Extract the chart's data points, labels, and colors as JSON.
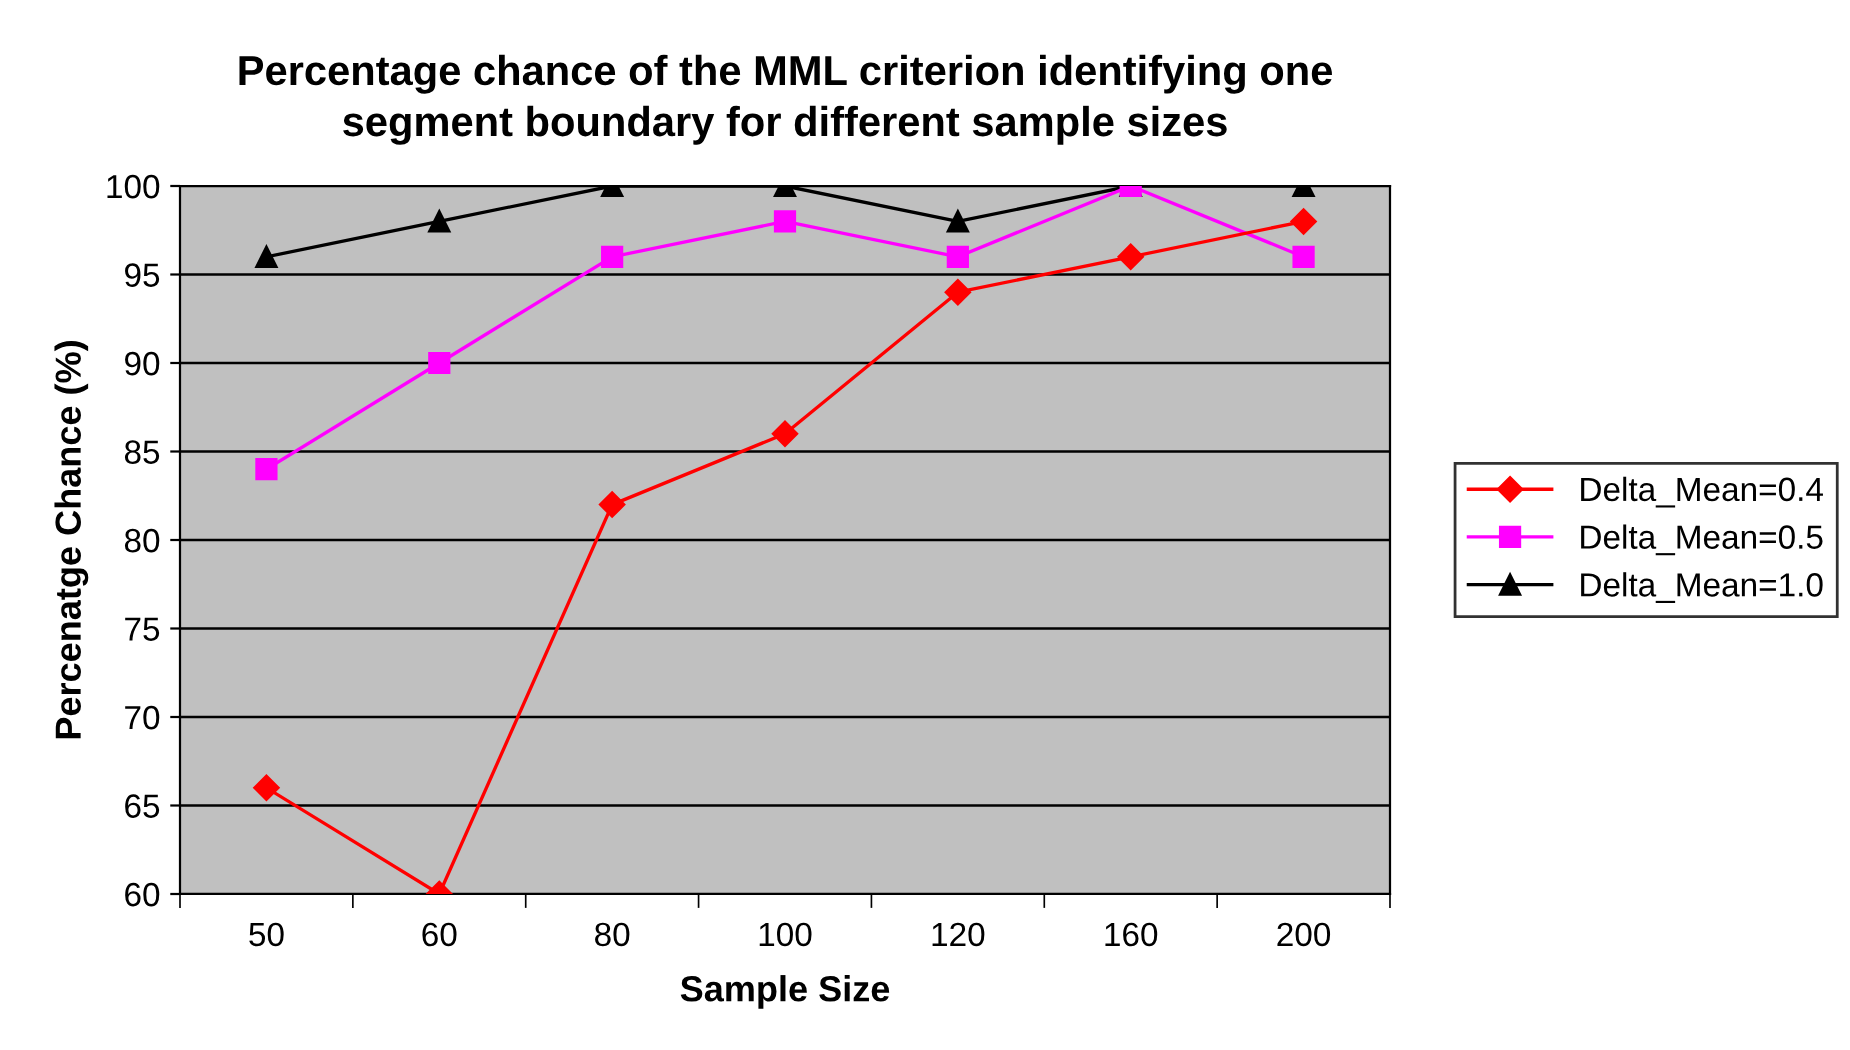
{
  "chart_data": {
    "type": "line",
    "title": "Percentage chance of the MML criterion identifying one\nsegment boundary for different sample sizes",
    "xlabel": "Sample Size",
    "ylabel": "Percenatge Chance (%)",
    "categories": [
      "50",
      "60",
      "80",
      "100",
      "120",
      "160",
      "200"
    ],
    "series": [
      {
        "name": "Delta_Mean=0.4",
        "color": "#ff0000",
        "marker": "diamond",
        "values": [
          66,
          60,
          82,
          86,
          94,
          96,
          98
        ]
      },
      {
        "name": "Delta_Mean=0.5",
        "color": "#ff00ff",
        "marker": "square",
        "values": [
          84,
          90,
          96,
          98,
          96,
          100,
          96
        ]
      },
      {
        "name": "Delta_Mean=1.0",
        "color": "#000000",
        "marker": "triangle",
        "values": [
          96,
          98,
          100,
          100,
          98,
          100,
          100
        ]
      }
    ],
    "ylim": [
      60,
      100
    ],
    "yticks": [
      60,
      65,
      70,
      75,
      80,
      85,
      90,
      95,
      100
    ],
    "grid": "y",
    "legend": "right",
    "line_style": "solid"
  }
}
